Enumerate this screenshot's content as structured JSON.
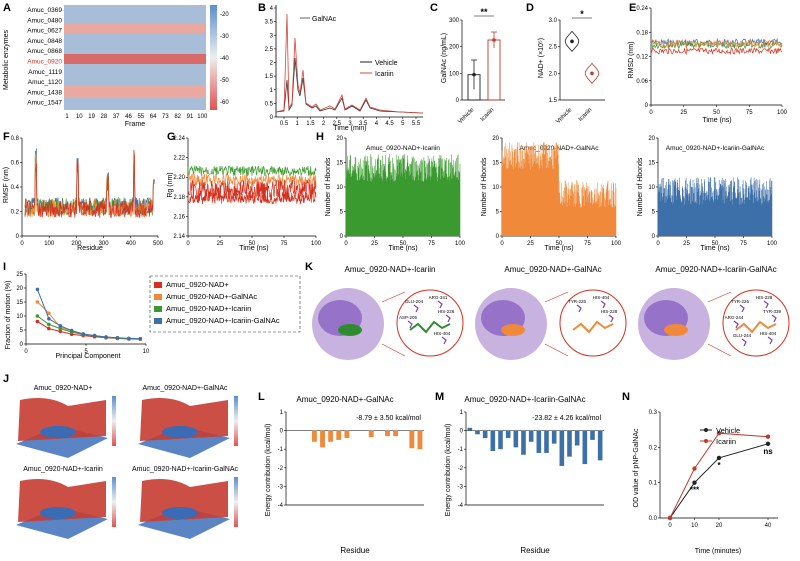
{
  "panels": {
    "A": {
      "letter": "A",
      "ylabel": "Metabolic enzymes",
      "xlabel": "Frame",
      "rows": [
        "Amuc_0369",
        "Amuc_0480",
        "Amuc_0627",
        "Amuc_0848",
        "Amuc_0868",
        "Amuc_0920",
        "Amuc_1119",
        "Amuc_1120",
        "Amuc_1438",
        "Amuc_1547"
      ],
      "highlight_index": 5,
      "xticks": [
        "1",
        "10",
        "19",
        "28",
        "37",
        "46",
        "55",
        "64",
        "73",
        "82",
        "91",
        "100"
      ],
      "cbar_ticks": [
        "-20",
        "-30",
        "-40",
        "-50",
        "-60"
      ]
    },
    "B": {
      "letter": "B",
      "xlabel": "Time (min)",
      "annotation": "GalNAc",
      "legend": [
        "Vehicle",
        "Icariin"
      ],
      "yticks": [
        "0",
        "0.5",
        "1",
        "1.5",
        "2",
        "2.5",
        "3",
        "3.5",
        "4"
      ],
      "xticks": [
        "0.5",
        "1",
        "1.5",
        "2",
        "2.5",
        "3",
        "3.5",
        "4",
        "4.5",
        "5",
        "5.5"
      ]
    },
    "C": {
      "letter": "C",
      "ylabel": "GalNAc (ng/mL)",
      "sig": "**",
      "cats": [
        "Vehicle",
        "Icariin"
      ],
      "yticks": [
        "0",
        "100",
        "200",
        "300"
      ]
    },
    "D": {
      "letter": "D",
      "ylabel": "NAD+ (×10⁵)",
      "sig": "*",
      "cats": [
        "Vehicle",
        "Icariin"
      ],
      "yticks": [
        "1.5",
        "2.0",
        "2.5",
        "3.0"
      ]
    },
    "E": {
      "letter": "E",
      "ylabel": "RMSD (nm)",
      "xlabel": "Time (ns)",
      "yticks": [
        "0",
        "0.06",
        "0.12",
        "0.18",
        "0.24"
      ],
      "xticks": [
        "0",
        "25",
        "50",
        "75",
        "100"
      ]
    },
    "F": {
      "letter": "F",
      "ylabel": "RMSF (nm)",
      "xlabel": "Residue",
      "yticks": [
        "0",
        "0.2",
        "0.4",
        "0.6",
        "0.8"
      ],
      "xticks": [
        "0",
        "100",
        "200",
        "300",
        "400",
        "500"
      ]
    },
    "G": {
      "letter": "G",
      "ylabel": "Rg (nm)",
      "xlabel": "Time (ns)",
      "yticks": [
        "2.14",
        "2.16",
        "2.18",
        "2.20",
        "2.22",
        "2.24"
      ],
      "xticks": [
        "0",
        "25",
        "50",
        "75",
        "100"
      ]
    },
    "H": {
      "letter": "H",
      "ylabel": "Number of Hbonds",
      "xlabel": "Time (ns)",
      "titles": [
        "Amuc_0920-NAD+-Icariin",
        "Amuc_0920-NAD+-GalNAc",
        "Amuc_0920-NAD+-Icariin-GalNAc"
      ],
      "yticks": [
        "0",
        "5",
        "10",
        "15",
        "20"
      ],
      "xticks": [
        "0",
        "25",
        "50",
        "75",
        "100"
      ]
    },
    "I": {
      "letter": "I",
      "ylabel": "Fraction of motion (%)",
      "xlabel": "Principal Component",
      "yticks": [
        "0",
        "5",
        "10",
        "15",
        "20",
        "25"
      ],
      "xticks": [
        "0",
        "5",
        "10"
      ],
      "legend": [
        "Amuc_0920-NAD+",
        "Amuc_0920-NAD+-GalNAc",
        "Amuc_0920-NAD+-Icariin",
        "Amuc_0920-NAD+-Icariin-GalNAc"
      ]
    },
    "J": {
      "letter": "J",
      "titles": [
        "Amuc_0920-NAD+",
        "Amuc_0920-NAD+-GalNAc",
        "Amuc_0920-NAD+-Icariin",
        "Amuc_0920-NAD+-Icariin-GalNAc"
      ]
    },
    "K": {
      "letter": "K",
      "titles": [
        "Amuc_0920-NAD+-Icariin",
        "Amuc_0920-NAD+-GalNAc",
        "Amuc_0920-NAD+-Icariin-GalNAc"
      ],
      "res1": [
        "GLU-204",
        "ARG-341",
        "HIS-226",
        "ASP-205",
        "HIS-404"
      ],
      "res2": [
        "TYR-226",
        "HIS-404",
        "HIS-228"
      ],
      "res3": [
        "TYR-226",
        "HIS-228",
        "TYR-339",
        "ARG-244",
        "HIS-404",
        "GLU-244"
      ]
    },
    "L": {
      "letter": "L",
      "title": "Amuc_0920-NAD+-GalNAc",
      "energy": "-8.79 ± 3.50 kcal/mol",
      "ylabel": "Energy contribution (kcal/mol)",
      "xlabel": "Residue",
      "yticks": [
        "-4",
        "-3",
        "-2",
        "-1",
        "0",
        "1"
      ]
    },
    "M": {
      "letter": "M",
      "title": "Amuc_0920-NAD+-Icariin-GalNAc",
      "energy": "-23.82 ± 4.26 kcal/mol",
      "ylabel": "Energy contribution (kcal/mol)",
      "xlabel": "Residue",
      "yticks": [
        "-4",
        "-3",
        "-2",
        "-1",
        "0",
        "1"
      ]
    },
    "N": {
      "letter": "N",
      "ylabel": "OD value of pNP-GalNAc",
      "xlabel": "Time (minutes)",
      "legend": [
        "Vehicle",
        "Icariin"
      ],
      "yticks": [
        "0.0",
        "0.1",
        "0.2",
        "0.3"
      ],
      "xticks": [
        "0",
        "10",
        "20",
        "40"
      ],
      "sig": [
        "***",
        "*",
        "ns"
      ]
    }
  },
  "colors": {
    "red": "#d7301f",
    "orange": "#f08a3a",
    "green": "#3b9a2f",
    "blue": "#3d6fa8",
    "vehicle": "#222222",
    "icariin": "#c0392b"
  },
  "chart_data": [
    {
      "panel": "C",
      "type": "bar",
      "categories": [
        "Vehicle",
        "Icariin"
      ],
      "values": [
        95,
        225
      ],
      "errors": [
        55,
        30
      ],
      "ylim": [
        0,
        300
      ]
    },
    {
      "panel": "D",
      "type": "scatter",
      "categories": [
        "Vehicle",
        "Icariin"
      ],
      "values": [
        2.6,
        2.0
      ],
      "ylim": [
        1.5,
        3.0
      ]
    },
    {
      "panel": "I",
      "type": "line",
      "x": [
        1,
        2,
        3,
        4,
        5,
        6,
        7,
        8,
        9,
        10
      ],
      "series": [
        {
          "name": "Amuc_0920-NAD+",
          "values": [
            8,
            5.5,
            4.5,
            3.5,
            3,
            2.6,
            2.2,
            2,
            1.8,
            1.7
          ]
        },
        {
          "name": "Amuc_0920-NAD+-GalNAc",
          "values": [
            15,
            11,
            6,
            4.5,
            3.5,
            3,
            2.5,
            2.1,
            1.9,
            1.8
          ]
        },
        {
          "name": "Amuc_0920-NAD+-Icariin",
          "values": [
            10,
            7,
            5.5,
            4.2,
            3.4,
            2.9,
            2.4,
            2.1,
            1.9,
            1.8
          ]
        },
        {
          "name": "Amuc_0920-NAD+-Icariin-GalNAc",
          "values": [
            19.5,
            9,
            6.5,
            4.8,
            3.6,
            3,
            2.5,
            2.2,
            2,
            1.9
          ]
        }
      ]
    },
    {
      "panel": "L",
      "type": "bar",
      "values": [
        0,
        0,
        0,
        -0.6,
        -0.9,
        -0.6,
        -0.5,
        -0.4,
        0,
        0,
        -0.35,
        0,
        -0.3,
        -0.3,
        0,
        -0.95,
        -1.0
      ]
    },
    {
      "panel": "M",
      "type": "bar",
      "values": [
        0.15,
        -0.2,
        -0.4,
        -1.1,
        -1.0,
        -0.4,
        -0.9,
        -1.3,
        -0.6,
        -1.2,
        -1.2,
        -0.7,
        -1.9,
        -1.4,
        -0.8,
        -1.8,
        -0.5,
        -1.6
      ]
    },
    {
      "panel": "N",
      "type": "line",
      "x": [
        0,
        10,
        20,
        40
      ],
      "series": [
        {
          "name": "Vehicle",
          "values": [
            0,
            0.1,
            0.17,
            0.21
          ]
        },
        {
          "name": "Icariin",
          "values": [
            0,
            0.14,
            0.24,
            0.23
          ]
        }
      ],
      "ylim": [
        0,
        0.3
      ]
    }
  ]
}
